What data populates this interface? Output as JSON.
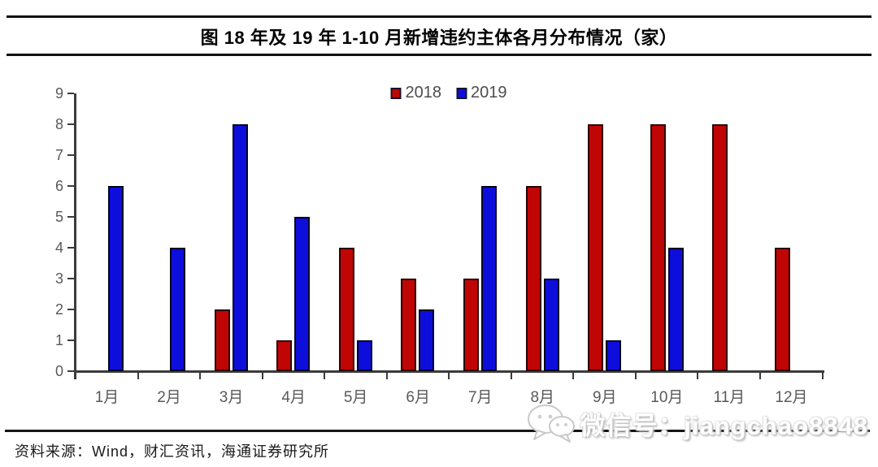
{
  "title": "图 18 年及 19 年 1-10 月新增违约主体各月分布情况（家）",
  "source_note": "资料来源：Wind，财汇资讯，海通证券研究所",
  "watermark": {
    "icon": "wechat-icon",
    "text": "微信号：jiangchao8848"
  },
  "colors": {
    "series_2018": "#c00505",
    "series_2019": "#0e0edc",
    "axis": "#3b3b3b",
    "tick_label": "#595959",
    "title_text": "#000000",
    "rule": "#111111"
  },
  "chart_data": {
    "type": "bar",
    "title": "图 18 年及 19 年 1-10 月新增违约主体各月分布情况（家）",
    "categories": [
      "1月",
      "2月",
      "3月",
      "4月",
      "5月",
      "6月",
      "7月",
      "8月",
      "9月",
      "10月",
      "11月",
      "12月"
    ],
    "series": [
      {
        "name": "2018",
        "color": "#c00505",
        "values": [
          0,
          0,
          2,
          1,
          4,
          3,
          3,
          6,
          8,
          8,
          8,
          4
        ]
      },
      {
        "name": "2019",
        "color": "#0e0edc",
        "values": [
          6,
          4,
          8,
          5,
          1,
          2,
          6,
          3,
          1,
          4,
          0,
          0
        ]
      }
    ],
    "xlabel": "",
    "ylabel": "",
    "ylim": [
      0,
      9
    ],
    "yticks": [
      0,
      1,
      2,
      3,
      4,
      5,
      6,
      7,
      8,
      9
    ],
    "grid": false,
    "legend_position": "top-center"
  }
}
